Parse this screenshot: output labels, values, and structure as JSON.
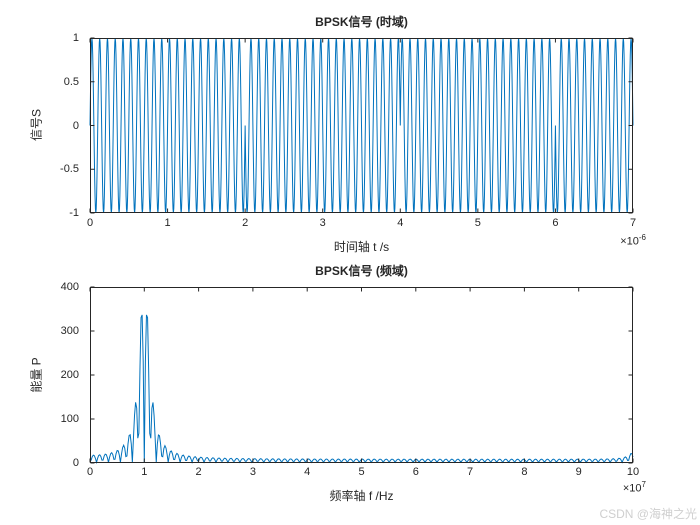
{
  "figure": {
    "background": "#ffffff",
    "watermark": "CSDN @海神之光"
  },
  "axis": {
    "color": "#262626",
    "tick_length": 4,
    "tick_label_color": "#262626"
  },
  "chart_data": [
    {
      "type": "line",
      "title": "BPSK信号 (时域)",
      "xlabel": "时间轴 t /s",
      "ylabel": "信号S",
      "x_exponent_base": "×10",
      "x_exponent_sup": "-6",
      "xlim": [
        0,
        7e-06
      ],
      "ylim": [
        -1,
        1
      ],
      "xticks": [
        "0",
        "1",
        "2",
        "3",
        "4",
        "5",
        "6",
        "7"
      ],
      "yticks": [
        "-1",
        "-0.5",
        "0",
        "0.5",
        "1"
      ],
      "line_color": "#0072BD",
      "grid": false,
      "legend": null,
      "signal": {
        "kind": "bpsk_time",
        "carrier_freq_hz": 10000000.0,
        "amplitude": 1,
        "duration_s": 7e-06,
        "bit_duration_s": 1e-06,
        "bits": [
          1,
          1,
          0,
          0,
          1,
          1,
          0
        ],
        "samples_per_cycle": 20
      }
    },
    {
      "type": "line",
      "title": "BPSK信号 (频域)",
      "xlabel": "频率轴 f /Hz",
      "ylabel": "能量 P",
      "x_exponent_base": "×10",
      "x_exponent_sup": "7",
      "xlim": [
        0,
        100000000.0
      ],
      "ylim": [
        0,
        400
      ],
      "xticks": [
        "0",
        "1",
        "2",
        "3",
        "4",
        "5",
        "6",
        "7",
        "8",
        "9",
        "10"
      ],
      "yticks": [
        "0",
        "100",
        "200",
        "300",
        "400"
      ],
      "line_color": "#0072BD",
      "grid": false,
      "legend": null,
      "signal": {
        "kind": "bpsk_spectrum",
        "center_freq_hz": 10000000.0,
        "peak_value": 330,
        "lobe_spacing_hz": 1100000.0,
        "envelope_width_hz": 1050000.0,
        "envelope_amplitude": 430,
        "noise_floor": 7,
        "edge_bump_amplitude": 15,
        "num_points": 501
      }
    }
  ]
}
